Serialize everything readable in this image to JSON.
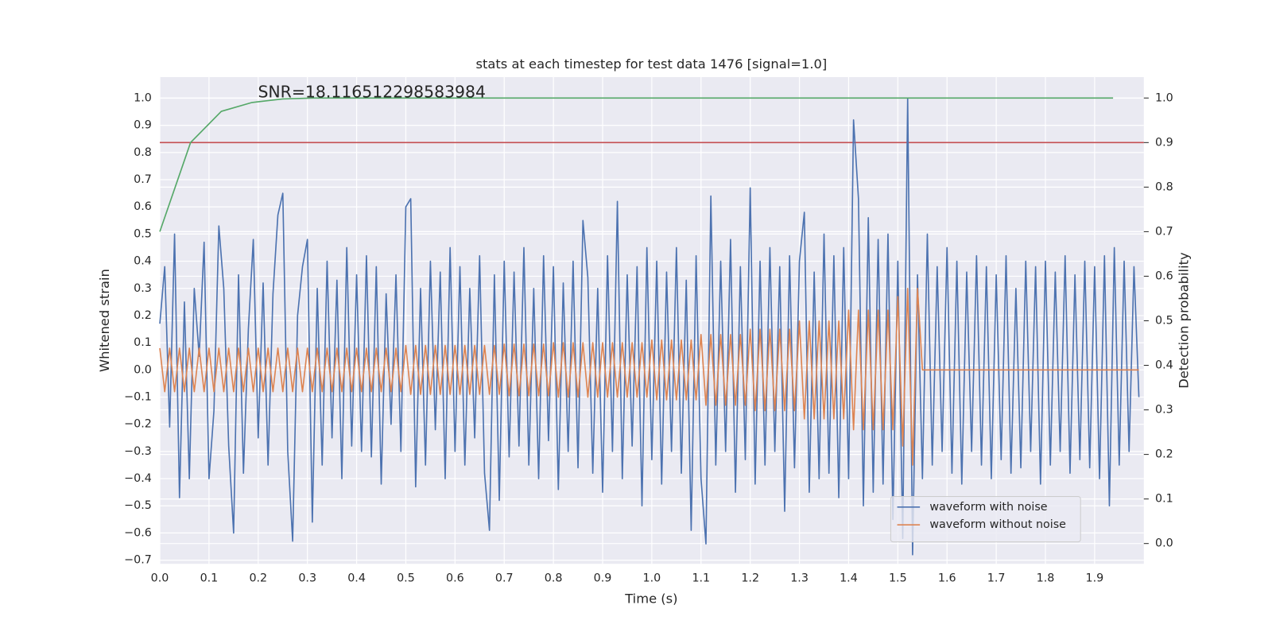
{
  "chart_data": {
    "type": "line",
    "title": "stats at each timestep for test data 1476 [signal=1.0]",
    "annotation": "SNR=18.116512298583984",
    "xlabel": "Time (s)",
    "ylabel": "Whitened strain",
    "y2label": "Detection probability",
    "grid": true,
    "legend": "lower right",
    "xlim": [
      0,
      2.0
    ],
    "ylim": [
      -0.7134,
      1.0776
    ],
    "y2lim": [
      -0.0455,
      1.047
    ],
    "xticks": [
      {
        "value": 0,
        "label": "0.0"
      },
      0.1,
      0.2,
      0.3,
      0.4,
      0.5,
      0.6,
      0.7,
      0.8,
      0.9,
      {
        "value": 1,
        "label": "1.0"
      },
      1.1,
      1.2,
      1.3,
      1.4,
      1.5,
      1.6,
      1.7,
      1.8,
      1.9
    ],
    "yticks": [
      {
        "value": -0.7,
        "label": "−0.7"
      },
      {
        "value": -0.6,
        "label": "−0.6"
      },
      {
        "value": -0.5,
        "label": "−0.5"
      },
      {
        "value": -0.4,
        "label": "−0.4"
      },
      {
        "value": -0.3,
        "label": "−0.3"
      },
      {
        "value": -0.2,
        "label": "−0.2"
      },
      {
        "value": -0.1,
        "label": "−0.1"
      },
      {
        "value": 0,
        "label": "0.0"
      },
      0.1,
      0.2,
      0.3,
      0.4,
      0.5,
      0.6,
      0.7,
      0.8,
      0.9,
      {
        "value": 1,
        "label": "1.0"
      }
    ],
    "y2ticks": [
      {
        "value": 0,
        "label": "0.0"
      },
      0.1,
      0.2,
      0.3,
      0.4,
      0.5,
      0.6,
      0.7,
      0.8,
      0.9,
      {
        "value": 1,
        "label": "1.0"
      }
    ],
    "hlines": [
      {
        "y": 0.9,
        "axis": "y2",
        "color": "#c44e52"
      }
    ],
    "x": [
      0,
      0.01,
      0.02,
      0.03,
      0.04,
      0.05,
      0.06,
      0.07,
      0.08,
      0.09,
      0.1,
      0.11,
      0.12,
      0.13,
      0.14,
      0.15,
      0.16,
      0.17,
      0.18,
      0.19,
      0.2,
      0.21,
      0.22,
      0.23,
      0.24,
      0.25,
      0.26,
      0.27,
      0.28,
      0.29,
      0.3,
      0.31,
      0.32,
      0.33,
      0.34,
      0.35,
      0.36,
      0.37,
      0.38,
      0.39,
      0.4,
      0.41,
      0.42,
      0.43,
      0.44,
      0.45,
      0.46,
      0.47,
      0.48,
      0.49,
      0.5,
      0.51,
      0.52,
      0.53,
      0.54,
      0.55,
      0.56,
      0.57,
      0.58,
      0.59,
      0.6,
      0.61,
      0.62,
      0.63,
      0.64,
      0.65,
      0.66,
      0.67,
      0.68,
      0.69,
      0.7,
      0.71,
      0.72,
      0.73,
      0.74,
      0.75,
      0.76,
      0.77,
      0.78,
      0.79,
      0.8,
      0.81,
      0.82,
      0.83,
      0.84,
      0.85,
      0.86,
      0.87,
      0.88,
      0.89,
      0.9,
      0.91,
      0.92,
      0.93,
      0.94,
      0.95,
      0.96,
      0.97,
      0.98,
      0.99,
      1,
      1.01,
      1.02,
      1.03,
      1.04,
      1.05,
      1.06,
      1.07,
      1.08,
      1.09,
      1.1,
      1.11,
      1.12,
      1.13,
      1.14,
      1.15,
      1.16,
      1.17,
      1.18,
      1.19,
      1.2,
      1.21,
      1.22,
      1.23,
      1.24,
      1.25,
      1.26,
      1.27,
      1.28,
      1.29,
      1.3,
      1.31,
      1.32,
      1.33,
      1.34,
      1.35,
      1.36,
      1.37,
      1.38,
      1.39,
      1.4,
      1.41,
      1.42,
      1.43,
      1.44,
      1.45,
      1.46,
      1.47,
      1.48,
      1.49,
      1.5,
      1.51,
      1.52,
      1.53,
      1.54,
      1.55,
      1.56,
      1.57,
      1.58,
      1.59,
      1.6,
      1.61,
      1.62,
      1.63,
      1.64,
      1.65,
      1.66,
      1.67,
      1.68,
      1.69,
      1.7,
      1.71,
      1.72,
      1.73,
      1.74,
      1.75,
      1.76,
      1.77,
      1.78,
      1.79,
      1.8,
      1.81,
      1.82,
      1.83,
      1.84,
      1.85,
      1.86,
      1.87,
      1.88,
      1.89,
      1.9,
      1.91,
      1.92,
      1.93,
      1.94,
      1.95,
      1.96,
      1.97,
      1.98,
      1.99
    ],
    "series": [
      {
        "name": "waveform with noise",
        "color": "#4c72b0",
        "values": [
          0.17,
          0.38,
          -0.21,
          0.5,
          -0.47,
          0.25,
          -0.4,
          0.3,
          0.05,
          0.47,
          -0.4,
          -0.15,
          0.53,
          0.3,
          -0.28,
          -0.6,
          0.35,
          -0.38,
          0.15,
          0.48,
          -0.25,
          0.32,
          -0.35,
          0.28,
          0.57,
          0.65,
          -0.3,
          -0.63,
          0.2,
          0.38,
          0.48,
          -0.56,
          0.3,
          -0.35,
          0.4,
          -0.25,
          0.33,
          -0.4,
          0.45,
          -0.28,
          0.35,
          -0.3,
          0.42,
          -0.32,
          0.38,
          -0.42,
          0.28,
          -0.2,
          0.35,
          -0.3,
          0.6,
          0.63,
          -0.43,
          0.3,
          -0.35,
          0.4,
          -0.22,
          0.36,
          -0.4,
          0.45,
          -0.3,
          0.38,
          -0.35,
          0.3,
          -0.25,
          0.42,
          -0.38,
          -0.59,
          0.35,
          -0.48,
          0.4,
          -0.32,
          0.36,
          -0.28,
          0.45,
          -0.35,
          0.3,
          -0.4,
          0.42,
          -0.26,
          0.38,
          -0.44,
          0.32,
          -0.3,
          0.4,
          -0.36,
          0.55,
          0.34,
          -0.38,
          0.3,
          -0.45,
          0.42,
          -0.3,
          0.62,
          -0.4,
          0.35,
          -0.28,
          0.38,
          -0.5,
          0.45,
          -0.33,
          0.4,
          -0.42,
          0.36,
          -0.3,
          0.45,
          -0.38,
          0.33,
          -0.59,
          0.42,
          -0.4,
          -0.64,
          0.64,
          -0.35,
          0.4,
          -0.3,
          0.48,
          -0.45,
          0.38,
          -0.33,
          0.67,
          -0.42,
          0.4,
          -0.35,
          0.45,
          -0.3,
          0.38,
          -0.52,
          0.42,
          -0.36,
          0.4,
          0.58,
          -0.45,
          0.36,
          -0.4,
          0.5,
          -0.38,
          0.42,
          -0.47,
          0.45,
          -0.4,
          0.92,
          0.63,
          -0.5,
          0.56,
          -0.45,
          0.48,
          -0.42,
          0.5,
          -0.55,
          0.4,
          -0.62,
          1.0,
          -0.68,
          0.35,
          -0.4,
          0.5,
          -0.35,
          0.38,
          -0.3,
          0.45,
          -0.38,
          0.4,
          -0.42,
          0.36,
          -0.3,
          0.42,
          -0.35,
          0.38,
          -0.4,
          0.35,
          -0.33,
          0.42,
          -0.38,
          0.3,
          -0.36,
          0.4,
          -0.3,
          0.38,
          -0.42,
          0.4,
          -0.35,
          0.36,
          -0.3,
          0.42,
          -0.38,
          0.35,
          -0.33,
          0.4,
          -0.36,
          0.38,
          -0.4,
          0.42,
          -0.5,
          0.45,
          -0.35,
          0.4,
          -0.3,
          0.38,
          -0.1
        ]
      },
      {
        "name": "waveform without noise",
        "color": "#dd8452",
        "values": [
          0.08,
          -0.08,
          0.08,
          -0.08,
          0.08,
          -0.08,
          0.08,
          -0.08,
          0.08,
          -0.08,
          0.08,
          -0.08,
          0.08,
          -0.08,
          0.08,
          -0.08,
          0.08,
          -0.08,
          0.08,
          -0.08,
          0.08,
          -0.08,
          0.08,
          -0.08,
          0.08,
          -0.08,
          0.08,
          -0.08,
          0.08,
          -0.08,
          0.08,
          -0.08,
          0.08,
          -0.08,
          0.08,
          -0.08,
          0.08,
          -0.08,
          0.08,
          -0.08,
          0.08,
          -0.08,
          0.08,
          -0.08,
          0.08,
          -0.08,
          0.08,
          -0.08,
          0.08,
          -0.08,
          0.09,
          -0.09,
          0.09,
          -0.09,
          0.09,
          -0.09,
          0.09,
          -0.09,
          0.09,
          -0.09,
          0.09,
          -0.09,
          0.09,
          -0.09,
          0.09,
          -0.09,
          0.09,
          -0.09,
          0.09,
          -0.09,
          0.095,
          -0.095,
          0.095,
          -0.095,
          0.095,
          -0.095,
          0.095,
          -0.095,
          0.095,
          -0.095,
          0.1,
          -0.1,
          0.1,
          -0.1,
          0.1,
          -0.1,
          0.1,
          -0.1,
          0.1,
          -0.1,
          0.1,
          -0.1,
          0.1,
          -0.1,
          0.1,
          -0.1,
          0.1,
          -0.1,
          0.1,
          -0.1,
          0.11,
          -0.11,
          0.11,
          -0.11,
          0.11,
          -0.11,
          0.11,
          -0.11,
          0.11,
          -0.11,
          0.13,
          -0.13,
          0.13,
          -0.13,
          0.13,
          -0.13,
          0.13,
          -0.13,
          0.13,
          -0.13,
          0.15,
          -0.15,
          0.15,
          -0.15,
          0.15,
          -0.15,
          0.15,
          -0.15,
          0.15,
          -0.15,
          0.18,
          -0.18,
          0.18,
          -0.18,
          0.18,
          -0.18,
          0.18,
          -0.18,
          0.18,
          -0.18,
          0.22,
          -0.22,
          0.22,
          -0.22,
          0.22,
          -0.22,
          0.22,
          -0.22,
          0.22,
          -0.22,
          0.27,
          -0.28,
          0.3,
          -0.35,
          0.3,
          0,
          0,
          0,
          0,
          0,
          0,
          0,
          0,
          0,
          0,
          0,
          0,
          0,
          0,
          0,
          0,
          0,
          0,
          0,
          0,
          0,
          0,
          0,
          0,
          0,
          0,
          0,
          0,
          0,
          0,
          0,
          0,
          0,
          0,
          0,
          0,
          0,
          0,
          0,
          0,
          0,
          0,
          0,
          0,
          0
        ]
      },
      {
        "color": "#55a868",
        "axis": "y2",
        "x": [
          0,
          0.0625,
          0.125,
          0.1875,
          0.25,
          0.3125,
          1.9375
        ],
        "values": [
          0.7,
          0.9,
          0.97,
          0.99,
          0.998,
          1.0,
          1.0
        ]
      }
    ]
  }
}
